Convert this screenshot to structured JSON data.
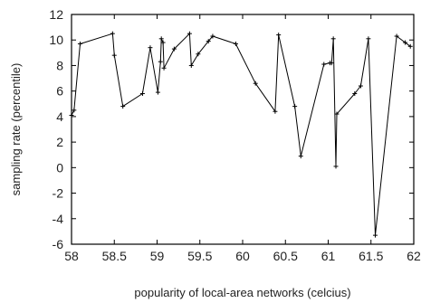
{
  "chart_data": {
    "type": "line",
    "title": "",
    "xlabel": "popularity of local-area networks (celcius)",
    "ylabel": "sampling rate (percentile)",
    "xlim": [
      58,
      62
    ],
    "ylim": [
      -6,
      12
    ],
    "x_ticks": [
      "58",
      "58.5",
      "59",
      "59.5",
      "60",
      "60.5",
      "61",
      "61.5",
      "62"
    ],
    "y_ticks": [
      "12",
      "10",
      "8",
      "6",
      "4",
      "2",
      "0",
      "-2",
      "-4",
      "-6"
    ],
    "grid": false,
    "legend": "none",
    "series": [
      {
        "color": "#000000",
        "marker": "plus",
        "x": [
          58.0,
          58.03,
          58.1,
          58.48,
          58.5,
          58.6,
          58.83,
          58.92,
          59.01,
          59.04,
          59.05,
          59.07,
          59.08,
          59.2,
          59.38,
          59.4,
          59.48,
          59.6,
          59.65,
          59.92,
          60.15,
          60.38,
          60.42,
          60.61,
          60.68,
          60.95,
          61.02,
          61.04,
          61.06,
          61.09,
          61.1,
          61.31,
          61.38,
          61.47,
          61.55,
          61.8,
          61.9,
          61.96
        ],
        "y": [
          4.1,
          4.5,
          9.7,
          10.5,
          8.8,
          4.8,
          5.8,
          9.4,
          5.9,
          8.3,
          10.1,
          9.8,
          7.8,
          9.3,
          10.5,
          8.0,
          8.9,
          9.9,
          10.3,
          9.7,
          6.6,
          4.4,
          10.4,
          4.8,
          0.9,
          8.1,
          8.2,
          8.2,
          10.1,
          0.1,
          4.2,
          5.8,
          6.4,
          10.1,
          -5.3,
          10.3,
          9.8,
          9.5
        ]
      }
    ]
  }
}
